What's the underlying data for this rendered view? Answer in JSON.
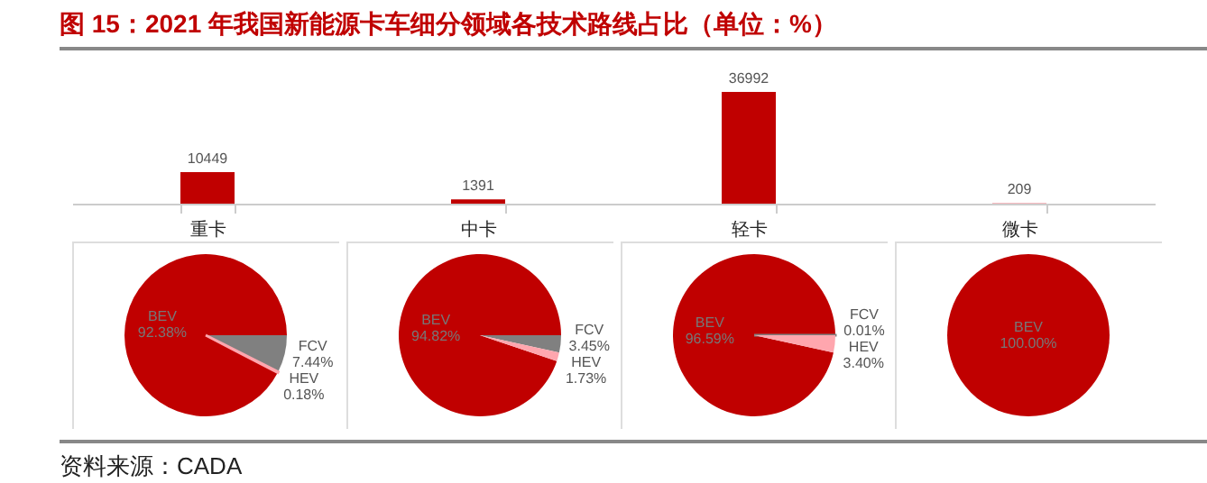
{
  "chart_data": [
    {
      "type": "bar",
      "title": "图 15：2021 年我国新能源卡车细分领域各技术路线占比（单位：%）",
      "categories": [
        "重卡",
        "中卡",
        "轻卡",
        "微卡"
      ],
      "values": [
        10449,
        1391,
        36992,
        209
      ],
      "colors": [
        "#c00000",
        "#c00000",
        "#c00000",
        "#f4a3aa"
      ],
      "data_labels": true,
      "annotations": [
        "资料来源：CADA"
      ]
    },
    {
      "type": "pie",
      "categories": [
        "BEV",
        "FCV",
        "HEV"
      ],
      "values": [
        92.38,
        7.44,
        0.18
      ],
      "colors": [
        "#c00000",
        "#808080",
        "#ffa6ae"
      ],
      "value_labels": [
        "92.38%",
        "7.44%",
        "0.18%"
      ]
    },
    {
      "type": "pie",
      "categories": [
        "BEV",
        "FCV",
        "HEV"
      ],
      "values": [
        94.82,
        3.45,
        1.73
      ],
      "colors": [
        "#c00000",
        "#808080",
        "#ffa6ae"
      ],
      "value_labels": [
        "94.82%",
        "3.45%",
        "1.73%"
      ]
    },
    {
      "type": "pie",
      "categories": [
        "BEV",
        "FCV",
        "HEV"
      ],
      "values": [
        96.59,
        0.01,
        3.4
      ],
      "colors": [
        "#c00000",
        "#808080",
        "#ffa6ae"
      ],
      "value_labels": [
        "96.59%",
        "0.01%",
        "3.40%"
      ]
    },
    {
      "type": "pie",
      "categories": [
        "BEV"
      ],
      "values": [
        100.0
      ],
      "colors": [
        "#c00000"
      ],
      "value_labels": [
        "100.00%"
      ]
    }
  ]
}
